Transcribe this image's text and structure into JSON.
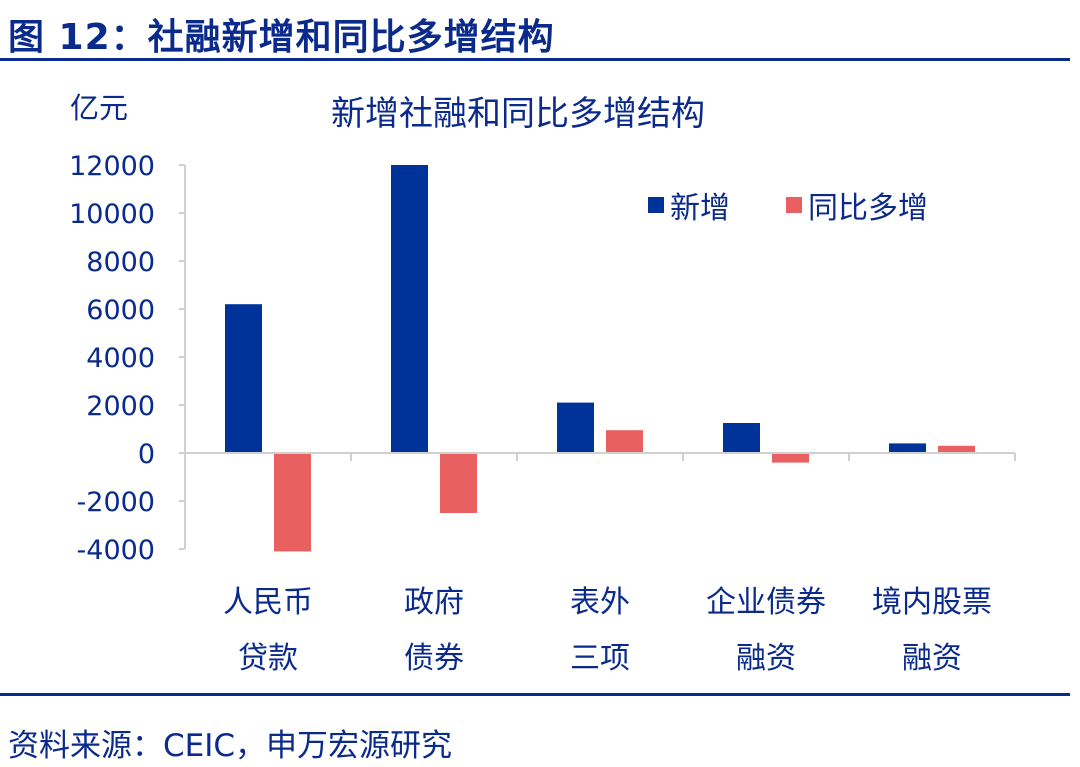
{
  "figure_title": "图 12：社融新增和同比多增结构",
  "source": "资料来源：CEIC，申万宏源研究",
  "colors": {
    "new": "#003399",
    "yoy": "#e86060",
    "text": "#0a2a8c"
  },
  "chart_data": {
    "type": "bar",
    "title": "新增社融和同比多增结构",
    "ylabel": "亿元",
    "xlabel": "",
    "ylim": [
      -4000,
      12000
    ],
    "yticks": [
      12000,
      10000,
      8000,
      6000,
      4000,
      2000,
      0,
      -2000,
      -4000
    ],
    "categories": [
      [
        "人民币",
        "贷款"
      ],
      [
        "政府",
        "债券"
      ],
      [
        "表外",
        "三项"
      ],
      [
        "企业债券",
        "融资"
      ],
      [
        "境内股票",
        "融资"
      ]
    ],
    "series": [
      {
        "name": "新增",
        "values": [
          6200,
          12000,
          2100,
          1250,
          400
        ]
      },
      {
        "name": "同比多增",
        "values": [
          -4100,
          -2500,
          950,
          -400,
          300
        ]
      }
    ],
    "legend_position": "top-right",
    "grid": false
  }
}
